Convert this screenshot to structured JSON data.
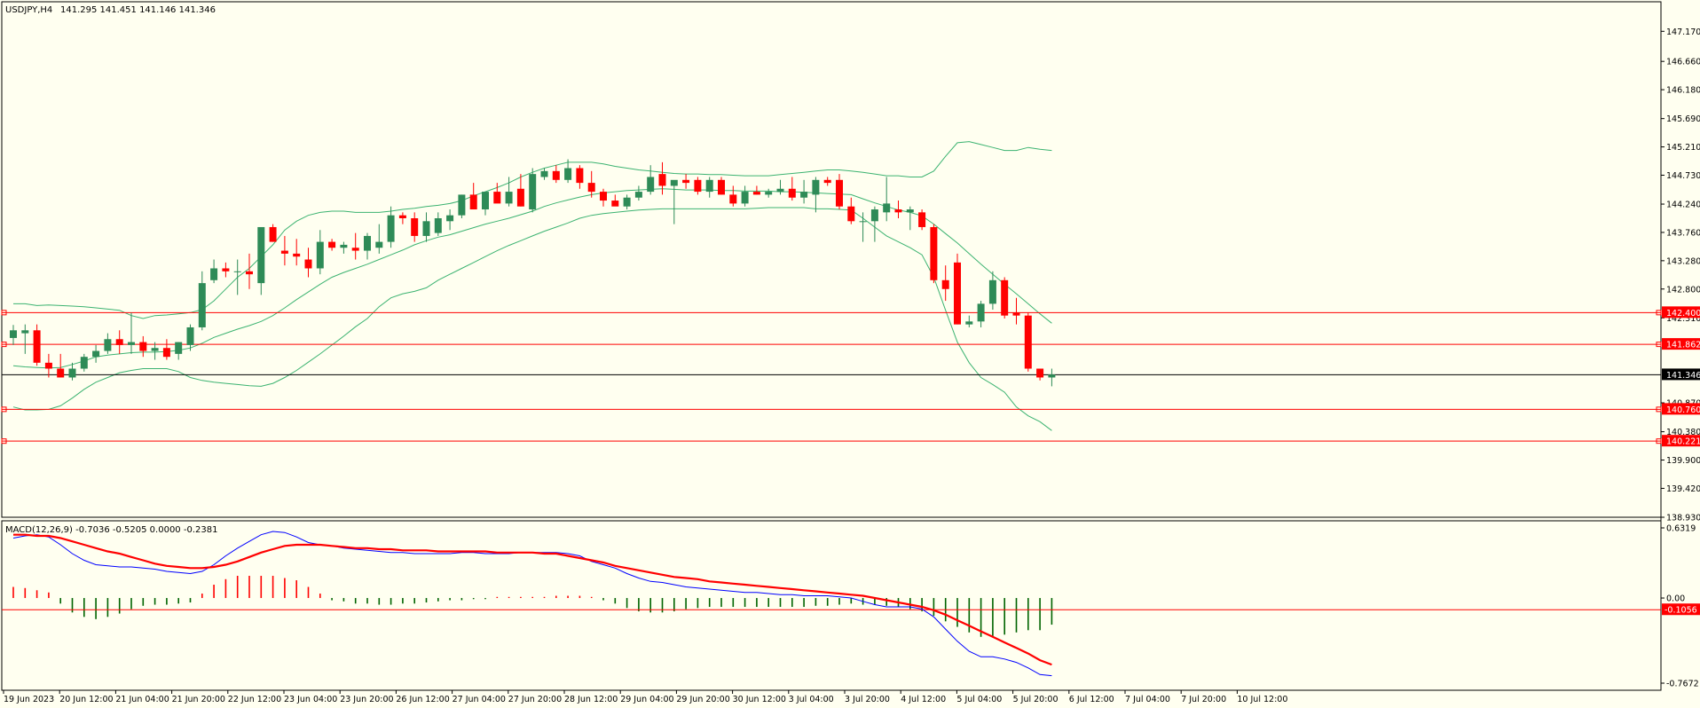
{
  "header": {
    "symbol": "USDJPY,H4",
    "ohlc": "141.295 141.451 141.146 141.346"
  },
  "macd_header": {
    "label": "MACD(12,26,9) -0.7036 -0.5205 0.0000 -0.2381"
  },
  "colors": {
    "background": "#fffff0",
    "bull_candle": "#2e8b57",
    "bear_candle": "#ff0000",
    "bollinger": "#3cb371",
    "level_line": "#ff0000",
    "current_price": "#000000",
    "macd_main": "#0000ff",
    "macd_signal": "#ff0000",
    "macd_hist_pos": "#ff0000",
    "macd_hist_neg": "#006400"
  },
  "chart_data": [
    {
      "type": "candlestick",
      "symbol": "USDJPY",
      "timeframe": "H4",
      "ylim": [
        138.93,
        147.5
      ],
      "price_ticks": [
        "147.170",
        "146.660",
        "146.180",
        "145.690",
        "145.210",
        "144.730",
        "144.240",
        "143.760",
        "143.280",
        "142.800",
        "142.310",
        "140.870",
        "140.380",
        "139.900",
        "139.420",
        "138.930"
      ],
      "time_labels": [
        "19 Jun 2023",
        "20 Jun 12:00",
        "21 Jun 04:00",
        "21 Jun 20:00",
        "22 Jun 12:00",
        "23 Jun 04:00",
        "23 Jun 20:00",
        "26 Jun 12:00",
        "27 Jun 04:00",
        "27 Jun 20:00",
        "28 Jun 12:00",
        "29 Jun 04:00",
        "29 Jun 20:00",
        "30 Jun 12:00",
        "3 Jul 04:00",
        "3 Jul 20:00",
        "4 Jul 12:00",
        "5 Jul 04:00",
        "5 Jul 20:00",
        "6 Jul 12:00",
        "7 Jul 04:00",
        "7 Jul 20:00",
        "10 Jul 12:00"
      ],
      "candles": [
        [
          141.97,
          142.19,
          141.85,
          142.1
        ],
        [
          142.05,
          142.2,
          141.7,
          142.1
        ],
        [
          142.1,
          142.2,
          141.5,
          141.55
        ],
        [
          141.55,
          141.7,
          141.3,
          141.45
        ],
        [
          141.45,
          141.7,
          141.3,
          141.3
        ],
        [
          141.3,
          141.55,
          141.25,
          141.45
        ],
        [
          141.45,
          141.7,
          141.4,
          141.65
        ],
        [
          141.65,
          141.85,
          141.55,
          141.75
        ],
        [
          141.75,
          142.05,
          141.7,
          141.95
        ],
        [
          141.95,
          142.1,
          141.7,
          141.85
        ],
        [
          141.85,
          142.4,
          141.7,
          141.9
        ],
        [
          141.9,
          142.0,
          141.65,
          141.75
        ],
        [
          141.75,
          141.9,
          141.6,
          141.8
        ],
        [
          141.8,
          141.95,
          141.6,
          141.65
        ],
        [
          141.7,
          141.9,
          141.6,
          141.9
        ],
        [
          141.85,
          142.2,
          141.75,
          142.15
        ],
        [
          142.15,
          143.1,
          142.1,
          142.9
        ],
        [
          142.95,
          143.3,
          142.9,
          143.15
        ],
        [
          143.15,
          143.25,
          143.0,
          143.1
        ],
        [
          143.1,
          143.3,
          142.7,
          143.1
        ],
        [
          143.1,
          143.4,
          142.8,
          143.05
        ],
        [
          142.9,
          143.8,
          142.7,
          143.85
        ],
        [
          143.85,
          143.9,
          143.6,
          143.6
        ],
        [
          143.45,
          143.7,
          143.2,
          143.4
        ],
        [
          143.4,
          143.65,
          143.2,
          143.35
        ],
        [
          143.3,
          143.5,
          143.0,
          143.15
        ],
        [
          143.15,
          143.8,
          143.05,
          143.6
        ],
        [
          143.6,
          143.65,
          143.45,
          143.5
        ],
        [
          143.5,
          143.6,
          143.4,
          143.55
        ],
        [
          143.5,
          143.75,
          143.3,
          143.45
        ],
        [
          143.45,
          143.75,
          143.3,
          143.7
        ],
        [
          143.5,
          143.9,
          143.4,
          143.6
        ],
        [
          143.6,
          144.2,
          143.5,
          144.05
        ],
        [
          144.05,
          144.1,
          143.9,
          144.0
        ],
        [
          144.0,
          144.1,
          143.6,
          143.7
        ],
        [
          143.7,
          144.1,
          143.6,
          143.95
        ],
        [
          143.75,
          144.1,
          143.7,
          144.0
        ],
        [
          143.95,
          144.15,
          143.8,
          144.05
        ],
        [
          144.05,
          144.4,
          144.0,
          144.4
        ],
        [
          144.4,
          144.6,
          144.2,
          144.15
        ],
        [
          144.15,
          144.45,
          144.05,
          144.45
        ],
        [
          144.45,
          144.6,
          144.3,
          144.25
        ],
        [
          144.25,
          144.7,
          144.2,
          144.45
        ],
        [
          144.5,
          144.75,
          144.2,
          144.2
        ],
        [
          144.15,
          144.85,
          144.1,
          144.75
        ],
        [
          144.7,
          144.85,
          144.65,
          144.8
        ],
        [
          144.8,
          144.9,
          144.6,
          144.65
        ],
        [
          144.65,
          145.0,
          144.6,
          144.85
        ],
        [
          144.85,
          144.9,
          144.5,
          144.6
        ],
        [
          144.6,
          144.8,
          144.35,
          144.45
        ],
        [
          144.45,
          144.5,
          144.2,
          144.3
        ],
        [
          144.3,
          144.4,
          144.25,
          144.2
        ],
        [
          144.2,
          144.4,
          144.15,
          144.35
        ],
        [
          144.35,
          144.55,
          144.3,
          144.45
        ],
        [
          144.45,
          144.9,
          144.4,
          144.7
        ],
        [
          144.75,
          144.95,
          144.4,
          144.55
        ],
        [
          144.55,
          144.6,
          143.9,
          144.65
        ],
        [
          144.65,
          144.75,
          144.5,
          144.6
        ],
        [
          144.65,
          144.7,
          144.4,
          144.45
        ],
        [
          144.45,
          144.7,
          144.35,
          144.65
        ],
        [
          144.65,
          144.7,
          144.4,
          144.4
        ],
        [
          144.4,
          144.55,
          144.2,
          144.25
        ],
        [
          144.25,
          144.55,
          144.2,
          144.45
        ],
        [
          144.45,
          144.55,
          144.4,
          144.4
        ],
        [
          144.4,
          144.5,
          144.35,
          144.45
        ],
        [
          144.45,
          144.65,
          144.4,
          144.5
        ],
        [
          144.5,
          144.7,
          144.3,
          144.35
        ],
        [
          144.35,
          144.65,
          144.25,
          144.45
        ],
        [
          144.4,
          144.7,
          144.1,
          144.65
        ],
        [
          144.65,
          144.7,
          144.55,
          144.6
        ],
        [
          144.65,
          144.75,
          144.15,
          144.2
        ],
        [
          144.2,
          144.35,
          143.9,
          143.95
        ],
        [
          143.95,
          144.1,
          143.6,
          143.95
        ],
        [
          143.95,
          144.2,
          143.6,
          144.15
        ],
        [
          144.1,
          144.7,
          143.95,
          144.25
        ],
        [
          144.15,
          144.3,
          144.0,
          144.1
        ],
        [
          144.1,
          144.2,
          143.8,
          144.15
        ],
        [
          144.1,
          144.15,
          143.8,
          143.85
        ],
        [
          143.85,
          143.9,
          142.9,
          142.95
        ],
        [
          142.95,
          143.2,
          142.6,
          142.8
        ],
        [
          143.25,
          143.4,
          142.2,
          142.2
        ],
        [
          142.2,
          142.35,
          142.15,
          142.25
        ],
        [
          142.25,
          142.6,
          142.15,
          142.55
        ],
        [
          142.55,
          143.1,
          142.45,
          142.95
        ],
        [
          142.95,
          143.0,
          142.3,
          142.35
        ],
        [
          142.4,
          142.65,
          142.2,
          142.35
        ],
        [
          142.35,
          142.4,
          141.4,
          141.45
        ],
        [
          141.45,
          141.45,
          141.25,
          141.3
        ],
        [
          141.3,
          141.45,
          141.15,
          141.35
        ]
      ],
      "bollinger": {
        "upper": [
          142.55,
          142.55,
          142.52,
          142.53,
          142.52,
          142.51,
          142.5,
          142.48,
          142.46,
          142.44,
          142.35,
          142.3,
          142.35,
          142.36,
          142.38,
          142.4,
          142.45,
          142.6,
          142.8,
          143.0,
          143.15,
          143.35,
          143.55,
          143.8,
          143.95,
          144.05,
          144.1,
          144.12,
          144.12,
          144.1,
          144.1,
          144.1,
          144.12,
          144.15,
          144.17,
          144.2,
          144.22,
          144.25,
          144.3,
          144.38,
          144.45,
          144.52,
          144.6,
          144.7,
          144.78,
          144.85,
          144.9,
          144.95,
          144.95,
          144.95,
          144.92,
          144.88,
          144.85,
          144.82,
          144.8,
          144.78,
          144.76,
          144.75,
          144.75,
          144.74,
          144.74,
          144.73,
          144.72,
          144.72,
          144.72,
          144.74,
          144.76,
          144.78,
          144.8,
          144.82,
          144.82,
          144.8,
          144.78,
          144.75,
          144.72,
          144.72,
          144.7,
          144.7,
          144.8,
          145.05,
          145.28,
          145.3,
          145.25,
          145.2,
          145.15,
          145.15,
          145.2,
          145.17,
          145.15
        ],
        "middle": [
          141.5,
          141.48,
          141.47,
          141.46,
          141.47,
          141.52,
          141.58,
          141.65,
          141.68,
          141.7,
          141.72,
          141.73,
          141.73,
          141.74,
          141.76,
          141.8,
          141.88,
          141.98,
          142.05,
          142.12,
          142.18,
          142.25,
          142.35,
          142.48,
          142.62,
          142.75,
          142.88,
          143.0,
          143.08,
          143.15,
          143.22,
          143.3,
          143.38,
          143.46,
          143.55,
          143.62,
          143.68,
          143.72,
          143.78,
          143.84,
          143.9,
          143.95,
          144.0,
          144.06,
          144.12,
          144.2,
          144.26,
          144.31,
          144.36,
          144.4,
          144.43,
          144.45,
          144.47,
          144.48,
          144.49,
          144.5,
          144.49,
          144.48,
          144.48,
          144.48,
          144.47,
          144.47,
          144.46,
          144.46,
          144.46,
          144.45,
          144.45,
          144.44,
          144.43,
          144.42,
          144.41,
          144.4,
          144.33,
          144.26,
          144.2,
          144.14,
          144.1,
          144.04,
          143.9,
          143.74,
          143.58,
          143.4,
          143.22,
          143.05,
          142.88,
          142.72,
          142.55,
          142.38,
          142.22
        ],
        "lower": [
          140.8,
          140.75,
          140.75,
          140.76,
          140.82,
          140.95,
          141.1,
          141.22,
          141.3,
          141.38,
          141.42,
          141.45,
          141.45,
          141.45,
          141.4,
          141.3,
          141.25,
          141.22,
          141.2,
          141.18,
          141.16,
          141.15,
          141.2,
          141.3,
          141.42,
          141.56,
          141.7,
          141.85,
          142.0,
          142.16,
          142.3,
          142.5,
          142.65,
          142.72,
          142.76,
          142.82,
          142.95,
          143.05,
          143.15,
          143.25,
          143.35,
          143.45,
          143.54,
          143.62,
          143.7,
          143.78,
          143.85,
          143.92,
          144.0,
          144.05,
          144.08,
          144.1,
          144.12,
          144.14,
          144.15,
          144.16,
          144.16,
          144.16,
          144.16,
          144.16,
          144.16,
          144.16,
          144.16,
          144.17,
          144.18,
          144.18,
          144.18,
          144.18,
          144.16,
          144.16,
          144.15,
          144.14,
          144.0,
          143.85,
          143.7,
          143.6,
          143.5,
          143.38,
          143.0,
          142.44,
          141.9,
          141.55,
          141.3,
          141.18,
          141.05,
          140.8,
          140.65,
          140.55,
          140.4
        ]
      },
      "levels": [
        {
          "value": 142.4,
          "label": "142.400",
          "color": "#ff0000"
        },
        {
          "value": 141.862,
          "label": "141.862",
          "color": "#ff0000"
        },
        {
          "value": 140.76,
          "label": "140.760",
          "color": "#ff0000"
        },
        {
          "value": 140.221,
          "label": "140.221",
          "color": "#ff0000"
        }
      ],
      "current_price": {
        "value": 141.346,
        "label": "141.346"
      }
    },
    {
      "type": "macd",
      "params": "12,26,9",
      "ylim": [
        -0.7672,
        0.6319
      ],
      "ticks": [
        "0.6319",
        "0.00",
        "-0.7672"
      ],
      "level": {
        "value": -0.1056,
        "label": "-0.1056"
      },
      "histogram": [
        0.1,
        0.09,
        0.07,
        0.05,
        -0.05,
        -0.13,
        -0.17,
        -0.19,
        -0.17,
        -0.14,
        -0.1,
        -0.07,
        -0.06,
        -0.06,
        -0.05,
        -0.04,
        0.04,
        0.12,
        0.17,
        0.2,
        0.2,
        0.2,
        0.2,
        0.18,
        0.16,
        0.1,
        0.04,
        -0.02,
        -0.03,
        -0.05,
        -0.05,
        -0.06,
        -0.06,
        -0.05,
        -0.05,
        -0.04,
        -0.03,
        -0.02,
        -0.02,
        -0.01,
        -0.01,
        0.01,
        0.01,
        0.01,
        0.01,
        0.01,
        0.02,
        0.02,
        0.02,
        0.01,
        -0.02,
        -0.05,
        -0.09,
        -0.12,
        -0.13,
        -0.13,
        -0.12,
        -0.1,
        -0.09,
        -0.08,
        -0.08,
        -0.08,
        -0.08,
        -0.08,
        -0.08,
        -0.08,
        -0.08,
        -0.08,
        -0.07,
        -0.07,
        -0.06,
        -0.05,
        -0.06,
        -0.06,
        -0.07,
        -0.08,
        -0.1,
        -0.12,
        -0.16,
        -0.21,
        -0.26,
        -0.31,
        -0.35,
        -0.35,
        -0.33,
        -0.31,
        -0.29,
        -0.29,
        -0.24
      ],
      "main": [
        0.54,
        0.56,
        0.57,
        0.55,
        0.48,
        0.4,
        0.34,
        0.3,
        0.29,
        0.28,
        0.28,
        0.27,
        0.26,
        0.24,
        0.23,
        0.22,
        0.24,
        0.3,
        0.38,
        0.45,
        0.51,
        0.57,
        0.6,
        0.59,
        0.55,
        0.5,
        0.48,
        0.47,
        0.45,
        0.44,
        0.43,
        0.42,
        0.41,
        0.41,
        0.4,
        0.4,
        0.4,
        0.4,
        0.41,
        0.41,
        0.4,
        0.4,
        0.4,
        0.41,
        0.41,
        0.41,
        0.41,
        0.4,
        0.38,
        0.33,
        0.3,
        0.27,
        0.22,
        0.18,
        0.15,
        0.14,
        0.12,
        0.1,
        0.09,
        0.08,
        0.07,
        0.06,
        0.05,
        0.05,
        0.04,
        0.03,
        0.03,
        0.02,
        0.02,
        0.02,
        0.01,
        0.0,
        -0.03,
        -0.06,
        -0.08,
        -0.08,
        -0.08,
        -0.1,
        -0.17,
        -0.28,
        -0.39,
        -0.48,
        -0.53,
        -0.53,
        -0.55,
        -0.58,
        -0.63,
        -0.69,
        -0.7
      ],
      "signal": [
        0.57,
        0.57,
        0.56,
        0.56,
        0.54,
        0.51,
        0.48,
        0.45,
        0.42,
        0.4,
        0.37,
        0.34,
        0.31,
        0.29,
        0.28,
        0.27,
        0.27,
        0.28,
        0.3,
        0.33,
        0.37,
        0.41,
        0.44,
        0.47,
        0.48,
        0.48,
        0.48,
        0.47,
        0.46,
        0.45,
        0.45,
        0.44,
        0.44,
        0.43,
        0.43,
        0.43,
        0.42,
        0.42,
        0.42,
        0.42,
        0.42,
        0.41,
        0.41,
        0.41,
        0.41,
        0.4,
        0.4,
        0.38,
        0.36,
        0.34,
        0.32,
        0.29,
        0.27,
        0.25,
        0.23,
        0.21,
        0.19,
        0.18,
        0.17,
        0.15,
        0.14,
        0.13,
        0.12,
        0.11,
        0.1,
        0.09,
        0.08,
        0.07,
        0.06,
        0.05,
        0.04,
        0.03,
        0.02,
        0.0,
        -0.02,
        -0.04,
        -0.06,
        -0.08,
        -0.11,
        -0.15,
        -0.2,
        -0.25,
        -0.3,
        -0.35,
        -0.4,
        -0.45,
        -0.5,
        -0.56,
        -0.6
      ]
    }
  ]
}
